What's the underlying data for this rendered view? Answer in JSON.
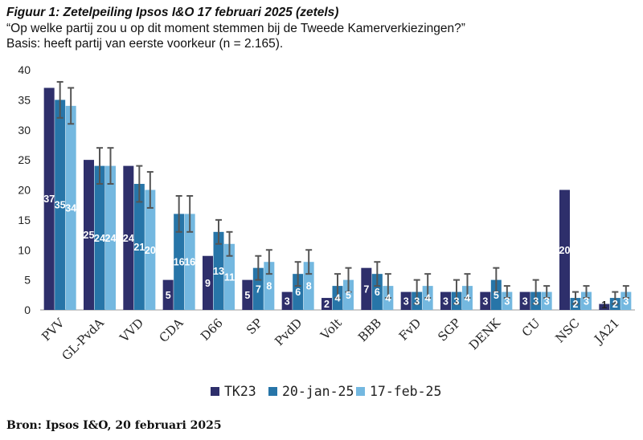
{
  "figure": {
    "title": "Figuur 1: Zetelpeiling Ipsos I&O 17 februari 2025 (zetels)",
    "subtitle": "“Op welke partij zou u op dit moment stemmen bij de Tweede Kamerverkiezingen?”",
    "basis": "Basis: heeft partij van eerste voorkeur (n = 2.165).",
    "source": "Bron: Ipsos I&O, 20 februari 2025"
  },
  "chart_data": {
    "type": "bar",
    "categories": [
      "PVV",
      "GL-PvdA",
      "VVD",
      "CDA",
      "D66",
      "SP",
      "PvdD",
      "Volt",
      "BBB",
      "FvD",
      "SGP",
      "DENK",
      "CU",
      "NSC",
      "JA21"
    ],
    "y_ticks": [
      "0",
      "5",
      "10",
      "15",
      "20",
      "25",
      "30",
      "35",
      "40"
    ],
    "ylim": [
      0,
      40
    ],
    "grid": false,
    "legend_position": "bottom",
    "series": [
      {
        "name": "TK23",
        "color": "#2e2f6b",
        "values": [
          37,
          25,
          24,
          5,
          9,
          5,
          3,
          2,
          7,
          3,
          3,
          3,
          3,
          20,
          1
        ],
        "labels": [
          "37",
          "25",
          "24",
          "5",
          "9",
          "5",
          "3",
          "2",
          "7",
          "3",
          "3",
          "3",
          "3",
          "20",
          "1"
        ]
      },
      {
        "name": "20-jan-25",
        "color": "#2775a8",
        "values": [
          35,
          24,
          21,
          16,
          13,
          7,
          6,
          4,
          6,
          3,
          3,
          5,
          3,
          2,
          2
        ],
        "labels": [
          "35",
          "24",
          "21",
          "16",
          "13",
          "7",
          "6",
          "4",
          "6",
          "3",
          "3",
          "5",
          "3",
          "2",
          "2"
        ],
        "error": [
          3,
          3,
          3,
          3,
          2,
          2,
          2,
          2,
          2,
          2,
          2,
          2,
          2,
          1,
          1
        ]
      },
      {
        "name": "17-feb-25",
        "color": "#74b8e0",
        "values": [
          34,
          24,
          20,
          16,
          11,
          8,
          8,
          5,
          4,
          4,
          4,
          3,
          3,
          3,
          3
        ],
        "labels": [
          "34",
          "24",
          "20",
          "16",
          "11",
          "8",
          "8",
          "5",
          "4",
          "4",
          "4",
          "3",
          "3",
          "3",
          "3"
        ],
        "error": [
          3,
          3,
          3,
          3,
          2,
          2,
          2,
          2,
          2,
          2,
          2,
          1,
          1,
          1,
          1
        ]
      }
    ]
  },
  "colors": {
    "error_bar": "#555555",
    "axis": "#999999"
  }
}
